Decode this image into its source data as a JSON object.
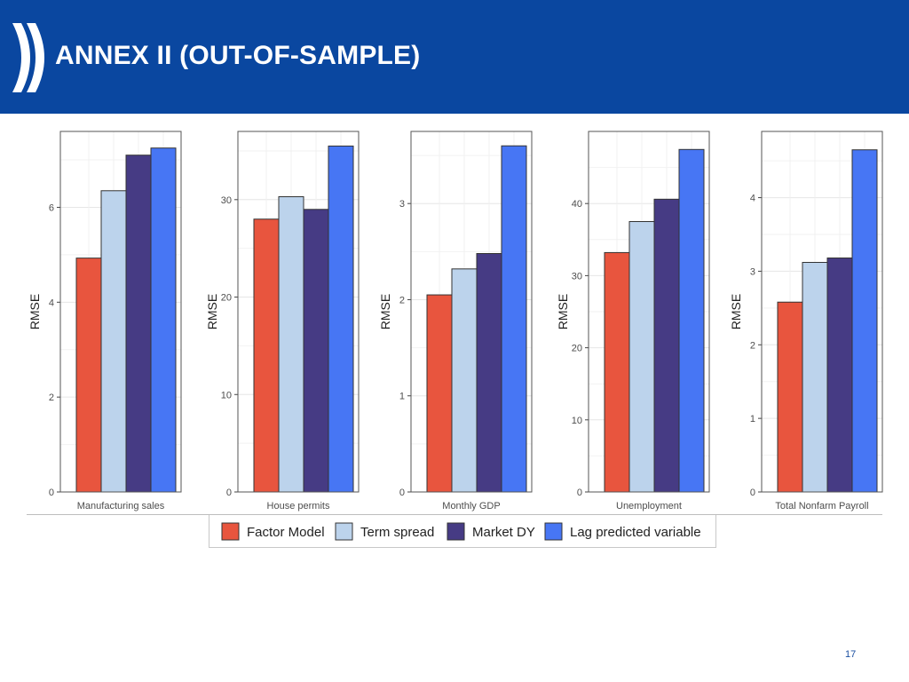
{
  "slide": {
    "title": "ANNEX II (OUT-OF-SAMPLE)",
    "page_number": "17"
  },
  "colors": {
    "banner": "#0a47a0",
    "Factor Model": "#e8553e",
    "Term spread": "#bcd3ec",
    "Market DY": "#463b84",
    "Lag predicted variable": "#4776f4"
  },
  "chart_data": [
    {
      "type": "bar",
      "title": "",
      "xlabel": "Manufacturing sales",
      "ylabel": "RMSE",
      "ylim": [
        0,
        7.6
      ],
      "yticks": [
        0,
        2,
        4,
        6
      ],
      "categories": [
        "Factor Model",
        "Term spread",
        "Market DY",
        "Lag predicted variable"
      ],
      "values": [
        4.93,
        6.35,
        7.1,
        7.25
      ]
    },
    {
      "type": "bar",
      "title": "",
      "xlabel": "House permits",
      "ylabel": "RMSE",
      "ylim": [
        0,
        37
      ],
      "yticks": [
        0,
        10,
        20,
        30
      ],
      "categories": [
        "Factor Model",
        "Term spread",
        "Market DY",
        "Lag predicted variable"
      ],
      "values": [
        28,
        30.3,
        29,
        35.5
      ]
    },
    {
      "type": "bar",
      "title": "",
      "xlabel": "Monthly GDP",
      "ylabel": "RMSE",
      "ylim": [
        0,
        3.75
      ],
      "yticks": [
        0,
        1,
        2,
        3
      ],
      "categories": [
        "Factor Model",
        "Term spread",
        "Market DY",
        "Lag predicted variable"
      ],
      "values": [
        2.05,
        2.32,
        2.48,
        3.6
      ]
    },
    {
      "type": "bar",
      "title": "",
      "xlabel": "Unemployment",
      "ylabel": "RMSE",
      "ylim": [
        0,
        50
      ],
      "yticks": [
        0,
        10,
        20,
        30,
        40
      ],
      "categories": [
        "Factor Model",
        "Term spread",
        "Market DY",
        "Lag predicted variable"
      ],
      "values": [
        33.2,
        37.5,
        40.6,
        47.5
      ]
    },
    {
      "type": "bar",
      "title": "",
      "xlabel": "Total Nonfarm Payroll",
      "ylabel": "RMSE",
      "ylim": [
        0,
        4.9
      ],
      "yticks": [
        0,
        1,
        2,
        3,
        4
      ],
      "categories": [
        "Factor Model",
        "Term spread",
        "Market DY",
        "Lag predicted variable"
      ],
      "values": [
        2.58,
        3.12,
        3.18,
        4.65
      ]
    }
  ],
  "legend": {
    "items": [
      "Factor Model",
      "Term spread",
      "Market DY",
      "Lag predicted variable"
    ]
  }
}
